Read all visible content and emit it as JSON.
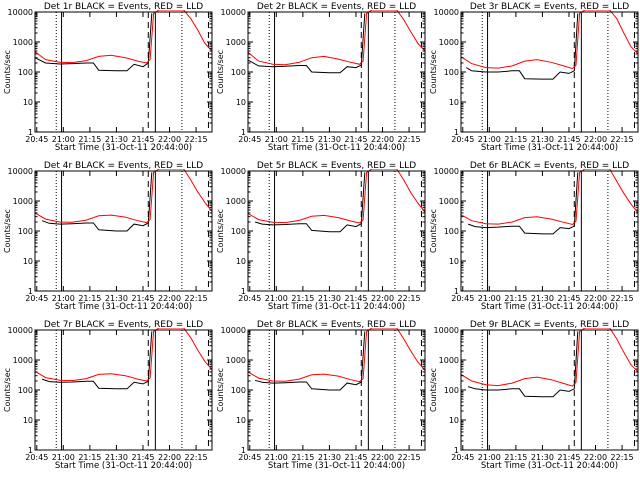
{
  "colors": {
    "events": "#000000",
    "lld": "#ff0000",
    "axes": "#000000",
    "background": "#ffffff"
  },
  "chart_data": {
    "type": "line",
    "layout": "3x3 grid of panels",
    "y_scale": "log",
    "ylabel": "Counts/sec",
    "xlabel": "Start Time (31-Oct-11 20:44:00)",
    "ylim": [
      1,
      10000
    ],
    "y_ticks": [
      "1",
      "10",
      "100",
      "1000",
      "10000"
    ],
    "x_ticks_a": [
      "20:45",
      "21:00",
      "21:15",
      "21:30",
      "21:45",
      "22:00",
      "22:15"
    ],
    "x_ticks_b": [
      "20:45",
      "21:00",
      "21:15",
      "21:30",
      "21:45",
      "22:00",
      "22:15"
    ],
    "x_range": [
      "20:44",
      "22:24"
    ],
    "series_legend": "BLACK = Events, RED = LLD",
    "vertical_markers": {
      "dotted": [
        "20:56",
        "22:07"
      ],
      "solid": [
        "20:59",
        "21:52"
      ],
      "dashed": [
        "21:48",
        "22:22"
      ]
    },
    "panels": [
      {
        "title": "Det 1r BLACK = Events, RED = LLD",
        "xtick_set": "a",
        "series": [
          {
            "name": "Events",
            "color": "#000000",
            "x": [
              "20:44",
              "20:50",
              "20:58",
              "21:05",
              "21:13",
              "21:17",
              "21:20",
              "21:30",
              "21:36",
              "21:40",
              "21:45",
              "21:48",
              "21:50"
            ],
            "y": [
              300,
              200,
              185,
              190,
              200,
              200,
              115,
              110,
              110,
              180,
              150,
              200,
              9000
            ]
          },
          {
            "name": "LLD",
            "color": "#ff0000",
            "x": [
              "20:44",
              "20:50",
              "20:58",
              "21:05",
              "21:13",
              "21:20",
              "21:27",
              "21:35",
              "21:42",
              "21:47",
              "21:49",
              "21:51",
              "21:54",
              "22:08",
              "22:12",
              "22:16",
              "22:20",
              "22:24"
            ],
            "y": [
              480,
              260,
              210,
              205,
              240,
              330,
              360,
              300,
              230,
              200,
              260,
              9000,
              13000,
              13000,
              6000,
              2500,
              900,
              500
            ]
          }
        ]
      },
      {
        "title": "Det 2r BLACK = Events, RED = LLD",
        "xtick_set": "a",
        "series": [
          {
            "name": "Events",
            "color": "#000000",
            "x": [
              "20:44",
              "20:50",
              "20:58",
              "21:05",
              "21:13",
              "21:17",
              "21:20",
              "21:30",
              "21:36",
              "21:40",
              "21:45",
              "21:48",
              "21:50"
            ],
            "y": [
              250,
              160,
              150,
              155,
              165,
              165,
              100,
              95,
              95,
              150,
              140,
              170,
              9000
            ]
          },
          {
            "name": "LLD",
            "color": "#ff0000",
            "x": [
              "20:44",
              "20:50",
              "20:58",
              "21:05",
              "21:13",
              "21:20",
              "21:27",
              "21:35",
              "21:42",
              "21:47",
              "21:49",
              "21:51",
              "21:54",
              "22:08",
              "22:12",
              "22:16",
              "22:20",
              "22:24"
            ],
            "y": [
              450,
              230,
              180,
              175,
              210,
              300,
              330,
              270,
              210,
              180,
              230,
              9000,
              13000,
              13000,
              5500,
              2200,
              900,
              500
            ]
          }
        ]
      },
      {
        "title": "Det 3r BLACK = Events, RED = LLD",
        "xtick_set": "b",
        "series": [
          {
            "name": "Events",
            "color": "#000000",
            "x": [
              "20:47",
              "20:50",
              "20:58",
              "21:05",
              "21:13",
              "21:17",
              "21:20",
              "21:30",
              "21:36",
              "21:40",
              "21:45",
              "21:48",
              "21:50"
            ],
            "y": [
              140,
              110,
              100,
              100,
              110,
              110,
              60,
              58,
              58,
              100,
              90,
              110,
              9000
            ]
          },
          {
            "name": "LLD",
            "color": "#ff0000",
            "x": [
              "20:44",
              "20:50",
              "20:58",
              "21:05",
              "21:13",
              "21:20",
              "21:27",
              "21:35",
              "21:42",
              "21:47",
              "21:49",
              "21:51",
              "21:54",
              "22:08",
              "22:12",
              "22:16",
              "22:20",
              "22:24"
            ],
            "y": [
              320,
              190,
              140,
              135,
              160,
              230,
              260,
              210,
              160,
              130,
              170,
              9000,
              13000,
              13000,
              6000,
              2000,
              700,
              400
            ]
          }
        ]
      },
      {
        "title": "Det 4r BLACK = Events, RED = LLD",
        "xtick_set": "a",
        "series": [
          {
            "name": "Events",
            "color": "#000000",
            "x": [
              "20:48",
              "20:52",
              "20:58",
              "21:05",
              "21:13",
              "21:17",
              "21:20",
              "21:30",
              "21:36",
              "21:40",
              "21:45",
              "21:48",
              "21:50"
            ],
            "y": [
              220,
              180,
              170,
              175,
              185,
              185,
              110,
              100,
              100,
              170,
              150,
              185,
              9000
            ]
          },
          {
            "name": "LLD",
            "color": "#ff0000",
            "x": [
              "20:44",
              "20:50",
              "20:58",
              "21:05",
              "21:13",
              "21:20",
              "21:27",
              "21:35",
              "21:42",
              "21:47",
              "21:49",
              "21:51",
              "21:54",
              "22:08",
              "22:12",
              "22:16",
              "22:20",
              "22:24"
            ],
            "y": [
              400,
              250,
              200,
              195,
              230,
              320,
              340,
              290,
              220,
              190,
              240,
              9000,
              13000,
              13000,
              5000,
              2000,
              900,
              450
            ]
          }
        ]
      },
      {
        "title": "Det 5r BLACK = Events, RED = LLD",
        "xtick_set": "a",
        "series": [
          {
            "name": "Events",
            "color": "#000000",
            "x": [
              "20:48",
              "20:52",
              "20:58",
              "21:05",
              "21:13",
              "21:17",
              "21:20",
              "21:30",
              "21:36",
              "21:40",
              "21:45",
              "21:48",
              "21:50"
            ],
            "y": [
              200,
              170,
              160,
              165,
              175,
              175,
              105,
              95,
              95,
              160,
              140,
              175,
              9000
            ]
          },
          {
            "name": "LLD",
            "color": "#ff0000",
            "x": [
              "20:44",
              "20:50",
              "20:58",
              "21:05",
              "21:13",
              "21:20",
              "21:27",
              "21:35",
              "21:42",
              "21:47",
              "21:49",
              "21:51",
              "21:54",
              "22:08",
              "22:12",
              "22:16",
              "22:20",
              "22:24"
            ],
            "y": [
              380,
              240,
              195,
              190,
              225,
              310,
              330,
              280,
              215,
              185,
              235,
              9000,
              13000,
              13000,
              5000,
              1900,
              850,
              420
            ]
          }
        ]
      },
      {
        "title": "Det 6r BLACK = Events, RED = LLD",
        "xtick_set": "b",
        "series": [
          {
            "name": "Events",
            "color": "#000000",
            "x": [
              "20:48",
              "20:52",
              "20:58",
              "21:05",
              "21:13",
              "21:17",
              "21:20",
              "21:30",
              "21:36",
              "21:40",
              "21:45",
              "21:48",
              "21:50"
            ],
            "y": [
              170,
              140,
              130,
              135,
              145,
              145,
              85,
              80,
              80,
              130,
              120,
              145,
              9000
            ]
          },
          {
            "name": "LLD",
            "color": "#ff0000",
            "x": [
              "20:44",
              "20:50",
              "20:58",
              "21:05",
              "21:13",
              "21:20",
              "21:27",
              "21:35",
              "21:42",
              "21:47",
              "21:49",
              "21:51",
              "21:54",
              "22:08",
              "22:12",
              "22:16",
              "22:20",
              "22:24"
            ],
            "y": [
              350,
              220,
              175,
              170,
              200,
              280,
              300,
              250,
              195,
              165,
              210,
              9000,
              13000,
              13000,
              4500,
              1800,
              800,
              400
            ]
          }
        ]
      },
      {
        "title": "Det 7r BLACK = Events, RED = LLD",
        "xtick_set": "a",
        "series": [
          {
            "name": "Events",
            "color": "#000000",
            "x": [
              "20:48",
              "20:52",
              "20:58",
              "21:05",
              "21:13",
              "21:17",
              "21:20",
              "21:30",
              "21:36",
              "21:40",
              "21:45",
              "21:48",
              "21:50"
            ],
            "y": [
              230,
              190,
              180,
              185,
              195,
              195,
              115,
              110,
              110,
              180,
              160,
              195,
              9000
            ]
          },
          {
            "name": "LLD",
            "color": "#ff0000",
            "x": [
              "20:44",
              "20:50",
              "20:58",
              "21:05",
              "21:13",
              "21:20",
              "21:27",
              "21:35",
              "21:42",
              "21:47",
              "21:49",
              "21:51",
              "21:54",
              "22:08",
              "22:12",
              "22:16",
              "22:20",
              "22:24"
            ],
            "y": [
              420,
              260,
              210,
              205,
              240,
              330,
              350,
              300,
              230,
              200,
              250,
              9000,
              13000,
              13000,
              5500,
              2100,
              900,
              480
            ]
          }
        ]
      },
      {
        "title": "Det 8r BLACK = Events, RED = LLD",
        "xtick_set": "a",
        "series": [
          {
            "name": "Events",
            "color": "#000000",
            "x": [
              "20:48",
              "20:52",
              "20:58",
              "21:05",
              "21:13",
              "21:17",
              "21:20",
              "21:30",
              "21:36",
              "21:40",
              "21:45",
              "21:48",
              "21:50"
            ],
            "y": [
              210,
              180,
              170,
              175,
              185,
              185,
              110,
              100,
              100,
              170,
              150,
              185,
              9000
            ]
          },
          {
            "name": "LLD",
            "color": "#ff0000",
            "x": [
              "20:44",
              "20:50",
              "20:58",
              "21:05",
              "21:13",
              "21:20",
              "21:27",
              "21:35",
              "21:42",
              "21:47",
              "21:49",
              "21:51",
              "21:54",
              "22:08",
              "22:12",
              "22:16",
              "22:20",
              "22:24"
            ],
            "y": [
              400,
              250,
              200,
              195,
              230,
              320,
              340,
              290,
              220,
              190,
              240,
              9000,
              13000,
              13000,
              5000,
              2000,
              850,
              450
            ]
          }
        ]
      },
      {
        "title": "Det 9r BLACK = Events, RED = LLD",
        "xtick_set": "b",
        "series": [
          {
            "name": "Events",
            "color": "#000000",
            "x": [
              "20:48",
              "20:52",
              "20:58",
              "21:05",
              "21:13",
              "21:17",
              "21:20",
              "21:30",
              "21:36",
              "21:40",
              "21:45",
              "21:48",
              "21:50"
            ],
            "y": [
              130,
              110,
              100,
              100,
              110,
              110,
              62,
              60,
              60,
              100,
              90,
              110,
              9000
            ]
          },
          {
            "name": "LLD",
            "color": "#ff0000",
            "x": [
              "20:44",
              "20:50",
              "20:58",
              "21:05",
              "21:13",
              "21:20",
              "21:27",
              "21:35",
              "21:42",
              "21:47",
              "21:49",
              "21:51",
              "21:54",
              "22:08",
              "22:12",
              "22:16",
              "22:20",
              "22:24"
            ],
            "y": [
              330,
              200,
              150,
              140,
              170,
              240,
              270,
              220,
              165,
              135,
              180,
              9000,
              13000,
              13000,
              5000,
              1800,
              700,
              400
            ]
          }
        ]
      }
    ]
  }
}
